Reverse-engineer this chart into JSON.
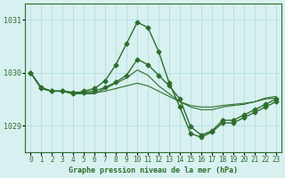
{
  "title": "Graphe pression niveau de la mer (hPa)",
  "bg_color": "#d8f0f0",
  "line_color": "#2d6e2d",
  "grid_color": "#aadddd",
  "ylim": [
    1028.5,
    1031.3
  ],
  "xlim": [
    -0.5,
    23.5
  ],
  "yticks": [
    1029,
    1030,
    1031
  ],
  "xticks": [
    0,
    1,
    2,
    3,
    4,
    5,
    6,
    7,
    8,
    9,
    10,
    11,
    12,
    13,
    14,
    15,
    16,
    17,
    18,
    19,
    20,
    21,
    22,
    23
  ],
  "series": [
    {
      "x": [
        0,
        1,
        2,
        3,
        4,
        5,
        6,
        7,
        8,
        9,
        10,
        11,
        12,
        13,
        14,
        15,
        16,
        17,
        18,
        19,
        20,
        21,
        22,
        23
      ],
      "y": [
        1030.0,
        1029.7,
        1029.65,
        1029.65,
        1029.6,
        1029.65,
        1029.7,
        1029.85,
        1030.15,
        1030.55,
        1030.95,
        1030.85,
        1030.4,
        1029.8,
        1029.35,
        1028.85,
        1028.78,
        1028.88,
        1029.05,
        1029.05,
        1029.15,
        1029.25,
        1029.35,
        1029.45
      ],
      "marker": "D",
      "lw": 1.0,
      "ms": 2.5
    },
    {
      "x": [
        0,
        1,
        2,
        3,
        4,
        5,
        6,
        7,
        8,
        9,
        10,
        11,
        12,
        13,
        14,
        15,
        16,
        17,
        18,
        19,
        20,
        21,
        22,
        23
      ],
      "y": [
        1030.0,
        1029.7,
        1029.65,
        1029.65,
        1029.6,
        1029.6,
        1029.6,
        1029.7,
        1029.8,
        1029.9,
        1030.05,
        1029.95,
        1029.75,
        1029.6,
        1029.45,
        1029.35,
        1029.3,
        1029.3,
        1029.35,
        1029.38,
        1029.4,
        1029.45,
        1029.52,
        1029.55
      ],
      "marker": null,
      "lw": 0.8,
      "ms": 0
    },
    {
      "x": [
        0,
        1,
        2,
        3,
        4,
        5,
        6,
        7,
        8,
        9,
        10,
        11,
        12,
        13,
        14,
        15,
        16,
        17,
        18,
        19,
        20,
        21,
        22,
        23
      ],
      "y": [
        1030.0,
        1029.7,
        1029.65,
        1029.65,
        1029.62,
        1029.62,
        1029.62,
        1029.65,
        1029.7,
        1029.75,
        1029.8,
        1029.75,
        1029.65,
        1029.55,
        1029.45,
        1029.38,
        1029.35,
        1029.35,
        1029.38,
        1029.4,
        1029.42,
        1029.45,
        1029.5,
        1029.52
      ],
      "marker": null,
      "lw": 0.8,
      "ms": 0
    },
    {
      "x": [
        0,
        1,
        2,
        3,
        4,
        5,
        6,
        7,
        8,
        9,
        10,
        11,
        12,
        13,
        14,
        15,
        16,
        17,
        18,
        19,
        20,
        21,
        22,
        23
      ],
      "y": [
        1030.0,
        1029.72,
        1029.65,
        1029.65,
        1029.63,
        1029.63,
        1029.65,
        1029.72,
        1029.82,
        1029.95,
        1030.25,
        1030.15,
        1029.95,
        1029.75,
        1029.5,
        1028.98,
        1028.82,
        1028.9,
        1029.1,
        1029.1,
        1029.2,
        1029.3,
        1029.4,
        1029.5
      ],
      "marker": "D",
      "lw": 1.0,
      "ms": 2.5
    }
  ]
}
